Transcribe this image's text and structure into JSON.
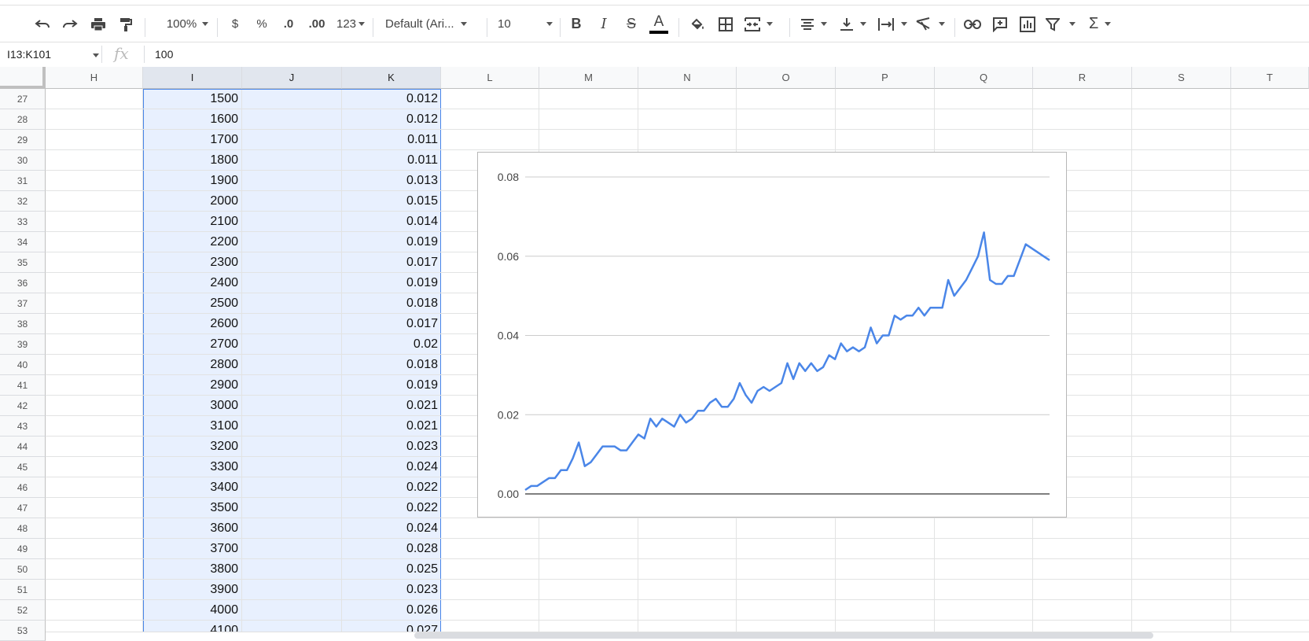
{
  "toolbar": {
    "zoom": "100%",
    "currency": "$",
    "percent": "%",
    "decrease_decimals": ".0",
    "increase_decimals": ".00",
    "more_formats": "123",
    "font": "Default (Ari...",
    "font_size": "10"
  },
  "formula_bar": {
    "name_box": "I13:K101",
    "fx": "fx",
    "value": "100"
  },
  "columns": [
    "H",
    "I",
    "J",
    "K",
    "L",
    "M",
    "N",
    "O",
    "P",
    "Q",
    "R",
    "S",
    "T"
  ],
  "rows": [
    {
      "num": "27",
      "i": "1500",
      "k": "0.012"
    },
    {
      "num": "28",
      "i": "1600",
      "k": "0.012"
    },
    {
      "num": "29",
      "i": "1700",
      "k": "0.011"
    },
    {
      "num": "30",
      "i": "1800",
      "k": "0.011"
    },
    {
      "num": "31",
      "i": "1900",
      "k": "0.013"
    },
    {
      "num": "32",
      "i": "2000",
      "k": "0.015"
    },
    {
      "num": "33",
      "i": "2100",
      "k": "0.014"
    },
    {
      "num": "34",
      "i": "2200",
      "k": "0.019"
    },
    {
      "num": "35",
      "i": "2300",
      "k": "0.017"
    },
    {
      "num": "36",
      "i": "2400",
      "k": "0.019"
    },
    {
      "num": "37",
      "i": "2500",
      "k": "0.018"
    },
    {
      "num": "38",
      "i": "2600",
      "k": "0.017"
    },
    {
      "num": "39",
      "i": "2700",
      "k": "0.02"
    },
    {
      "num": "40",
      "i": "2800",
      "k": "0.018"
    },
    {
      "num": "41",
      "i": "2900",
      "k": "0.019"
    },
    {
      "num": "42",
      "i": "3000",
      "k": "0.021"
    },
    {
      "num": "43",
      "i": "3100",
      "k": "0.021"
    },
    {
      "num": "44",
      "i": "3200",
      "k": "0.023"
    },
    {
      "num": "45",
      "i": "3300",
      "k": "0.024"
    },
    {
      "num": "46",
      "i": "3400",
      "k": "0.022"
    },
    {
      "num": "47",
      "i": "3500",
      "k": "0.022"
    },
    {
      "num": "48",
      "i": "3600",
      "k": "0.024"
    },
    {
      "num": "49",
      "i": "3700",
      "k": "0.028"
    },
    {
      "num": "50",
      "i": "3800",
      "k": "0.025"
    },
    {
      "num": "51",
      "i": "3900",
      "k": "0.023"
    },
    {
      "num": "52",
      "i": "4000",
      "k": "0.026"
    },
    {
      "num": "53",
      "i": "4100",
      "k": "0.027"
    }
  ],
  "colors": {
    "line": "#4a86e8",
    "selection": "#e8f0fe",
    "selection_border": "#4a86e8"
  },
  "chart_data": {
    "type": "line",
    "title": "",
    "xlabel": "",
    "ylabel": "",
    "ylim": [
      0,
      0.08
    ],
    "yticks": [
      "0.08",
      "0.06",
      "0.04",
      "0.02",
      "0.00"
    ],
    "grid": true,
    "series": [
      {
        "values": [
          0.001,
          0.002,
          0.002,
          0.003,
          0.004,
          0.004,
          0.006,
          0.006,
          0.009,
          0.013,
          0.007,
          0.008,
          0.01,
          0.012,
          0.012,
          0.012,
          0.011,
          0.011,
          0.013,
          0.015,
          0.014,
          0.019,
          0.017,
          0.019,
          0.018,
          0.017,
          0.02,
          0.018,
          0.019,
          0.021,
          0.021,
          0.023,
          0.024,
          0.022,
          0.022,
          0.024,
          0.028,
          0.025,
          0.023,
          0.026,
          0.027,
          0.026,
          0.027,
          0.028,
          0.033,
          0.029,
          0.033,
          0.031,
          0.033,
          0.031,
          0.032,
          0.035,
          0.034,
          0.038,
          0.036,
          0.037,
          0.036,
          0.037,
          0.042,
          0.038,
          0.04,
          0.04,
          0.045,
          0.044,
          0.045,
          0.045,
          0.047,
          0.045,
          0.047,
          0.047,
          0.047,
          0.054,
          0.05,
          0.052,
          0.054,
          0.057,
          0.06,
          0.066,
          0.054,
          0.053,
          0.053,
          0.055,
          0.055,
          0.059,
          0.063,
          0.062,
          0.061,
          0.06,
          0.059
        ]
      }
    ]
  }
}
